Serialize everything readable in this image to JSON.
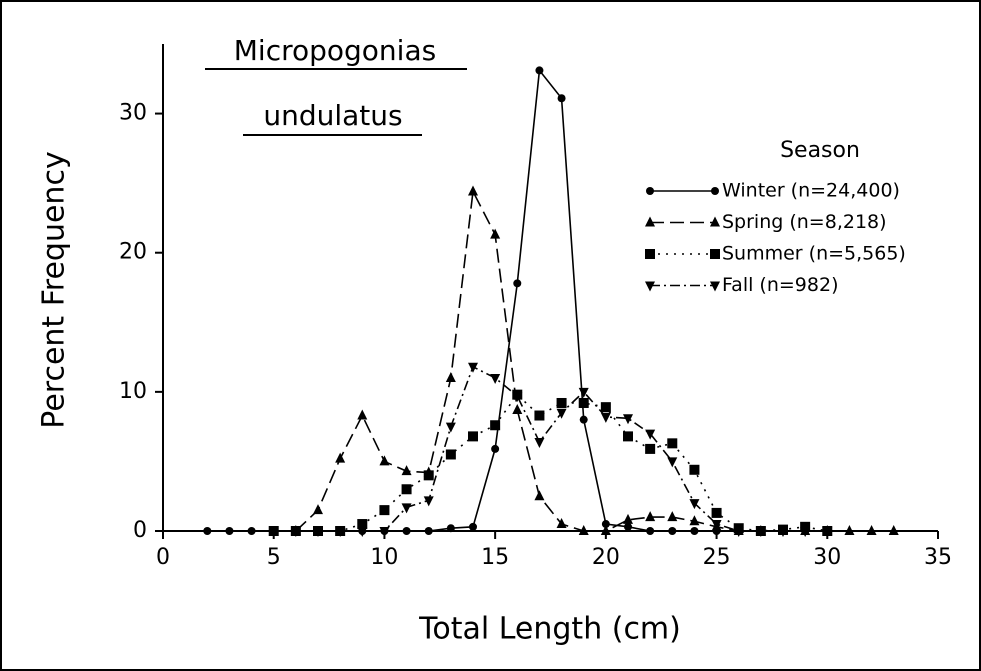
{
  "chart_data": {
    "type": "line",
    "title": [
      "Micropogonias",
      "undulatus"
    ],
    "xlabel": "Total Length (cm)",
    "ylabel": "Percent Frequency",
    "legend_title": "Season",
    "legend": "upper right",
    "xlim": [
      0,
      35
    ],
    "ylim": [
      0,
      35
    ],
    "xticks": [
      0,
      5,
      10,
      15,
      20,
      25,
      30,
      35
    ],
    "yticks": [
      0,
      10,
      20,
      30
    ],
    "series": [
      {
        "name": "Winter (n=24,400)",
        "color": "#000000",
        "marker": "circle",
        "linestyle": "solid",
        "x": [
          2,
          3,
          4,
          5,
          6,
          7,
          8,
          9,
          10,
          11,
          12,
          13,
          14,
          15,
          16,
          17,
          18,
          19,
          20,
          21,
          22,
          23,
          24,
          25,
          26,
          27,
          28,
          29,
          30
        ],
        "values": [
          0,
          0,
          0,
          0,
          0,
          0,
          0,
          0,
          0,
          0,
          0,
          0.2,
          0.3,
          5.9,
          17.8,
          33.1,
          31.1,
          8,
          0.5,
          0.3,
          0,
          0,
          0,
          0,
          0,
          0,
          0,
          0,
          0
        ]
      },
      {
        "name": "Spring (n=8,218)",
        "color": "#000000",
        "marker": "triangle",
        "linestyle": "dashed",
        "x": [
          6,
          7,
          8,
          9,
          10,
          11,
          12,
          13,
          14,
          15,
          16,
          17,
          18,
          19,
          20,
          21,
          22,
          23,
          24,
          25,
          26,
          27,
          28,
          29,
          30,
          31,
          32,
          33
        ],
        "values": [
          0,
          1.5,
          5.2,
          8.3,
          5,
          4.3,
          4.2,
          11,
          24.4,
          21.3,
          8.7,
          2.5,
          0.5,
          0,
          0,
          0.8,
          1,
          1,
          0.7,
          0.3,
          0,
          0,
          0,
          0,
          0,
          0,
          0,
          0
        ]
      },
      {
        "name": "Summer (n=5,565)",
        "color": "#000000",
        "marker": "square",
        "linestyle": "dotted",
        "x": [
          5,
          6,
          7,
          8,
          9,
          10,
          11,
          12,
          13,
          14,
          15,
          16,
          17,
          18,
          19,
          20,
          21,
          22,
          23,
          24,
          25,
          26,
          27,
          28,
          29,
          30
        ],
        "values": [
          0,
          0,
          0,
          0,
          0.5,
          1.5,
          3,
          4,
          5.5,
          6.8,
          7.6,
          9.8,
          8.3,
          9.2,
          9.2,
          8.9,
          6.8,
          5.9,
          6.3,
          4.4,
          1.3,
          0.2,
          0,
          0.1,
          0.3,
          0
        ]
      },
      {
        "name": "Fall (n=982)",
        "color": "#000000",
        "marker": "triangle-down",
        "linestyle": "dashdot",
        "x": [
          6,
          7,
          8,
          9,
          10,
          11,
          12,
          13,
          14,
          15,
          16,
          17,
          18,
          19,
          20,
          21,
          22,
          23,
          24,
          25,
          26,
          27,
          28,
          29,
          30
        ],
        "values": [
          0,
          0,
          0,
          0,
          0,
          1.7,
          2.2,
          7.5,
          11.8,
          11,
          9.7,
          6.4,
          8.5,
          10,
          8.2,
          8.1,
          7,
          5,
          2,
          0.5,
          0,
          0,
          0,
          0,
          0
        ]
      }
    ]
  }
}
